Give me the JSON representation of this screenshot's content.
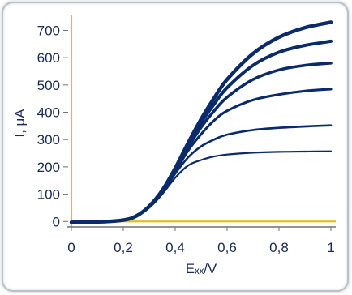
{
  "chart_data": {
    "type": "line",
    "ylabel": "I, μA",
    "xlabel": "Eₓₓ/V",
    "xlim": [
      0,
      1
    ],
    "ylim": [
      -20,
      740
    ],
    "x_ticks": [
      {
        "value": 0,
        "label": "0"
      },
      {
        "value": 0.2,
        "label": "0,2"
      },
      {
        "value": 0.4,
        "label": "0,4"
      },
      {
        "value": 0.6,
        "label": "0,6"
      },
      {
        "value": 0.8,
        "label": "0,8"
      },
      {
        "value": 1,
        "label": "1"
      }
    ],
    "y_ticks": [
      {
        "value": 0,
        "label": "0"
      },
      {
        "value": 100,
        "label": "100"
      },
      {
        "value": 200,
        "label": "200"
      },
      {
        "value": 300,
        "label": "300"
      },
      {
        "value": 400,
        "label": "400"
      },
      {
        "value": 500,
        "label": "500"
      },
      {
        "value": 600,
        "label": "600"
      },
      {
        "value": 700,
        "label": "700"
      }
    ],
    "grid": false,
    "legend": "none",
    "colors": {
      "series": "#0b2a6b",
      "zero_lines": "#e0c020",
      "axis": "#707070",
      "text": "#1a2a55"
    },
    "series": [
      {
        "x": [
          0,
          0.1,
          0.2,
          0.25,
          0.3,
          0.35,
          0.4,
          0.45,
          0.5,
          0.55,
          0.6,
          0.7,
          0.8,
          0.9,
          1.0
        ],
        "values": [
          -3,
          -2,
          5,
          20,
          50,
          100,
          160,
          205,
          225,
          238,
          245,
          252,
          255,
          256,
          257
        ]
      },
      {
        "x": [
          0,
          0.1,
          0.2,
          0.25,
          0.3,
          0.35,
          0.4,
          0.45,
          0.5,
          0.55,
          0.6,
          0.7,
          0.8,
          0.9,
          1.0
        ],
        "values": [
          -3,
          -2,
          5,
          20,
          52,
          105,
          175,
          235,
          275,
          300,
          318,
          335,
          343,
          348,
          352
        ]
      },
      {
        "x": [
          0,
          0.1,
          0.2,
          0.25,
          0.3,
          0.35,
          0.4,
          0.45,
          0.5,
          0.55,
          0.6,
          0.7,
          0.8,
          0.9,
          1.0
        ],
        "values": [
          -3,
          -2,
          5,
          20,
          53,
          108,
          182,
          260,
          320,
          370,
          405,
          445,
          465,
          478,
          485
        ]
      },
      {
        "x": [
          0,
          0.1,
          0.2,
          0.25,
          0.3,
          0.35,
          0.4,
          0.45,
          0.5,
          0.55,
          0.6,
          0.7,
          0.8,
          0.9,
          1.0
        ],
        "values": [
          -3,
          -2,
          5,
          20,
          54,
          110,
          188,
          272,
          345,
          405,
          455,
          520,
          555,
          572,
          580
        ]
      },
      {
        "x": [
          0,
          0.1,
          0.2,
          0.25,
          0.3,
          0.35,
          0.4,
          0.45,
          0.5,
          0.55,
          0.6,
          0.7,
          0.8,
          0.9,
          1.0
        ],
        "values": [
          -3,
          -2,
          5,
          20,
          55,
          112,
          192,
          280,
          362,
          430,
          490,
          572,
          620,
          645,
          660
        ]
      },
      {
        "x": [
          0,
          0.1,
          0.2,
          0.25,
          0.3,
          0.35,
          0.4,
          0.45,
          0.5,
          0.55,
          0.6,
          0.7,
          0.8,
          0.9,
          1.0
        ],
        "values": [
          -3,
          -2,
          5,
          20,
          56,
          114,
          195,
          288,
          375,
          452,
          520,
          615,
          675,
          710,
          730
        ]
      }
    ]
  }
}
